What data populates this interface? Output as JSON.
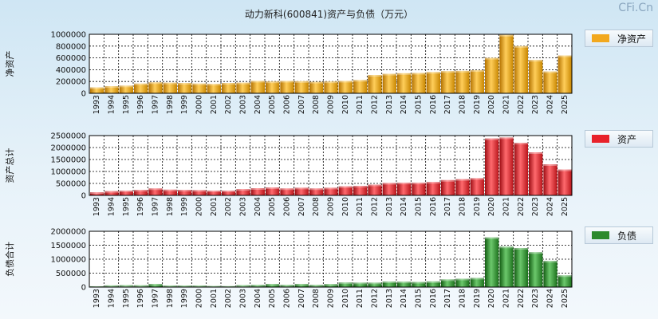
{
  "title": "动力新科(600841)资产与负债（万元）",
  "watermark": "CFi.Cn",
  "chart_data": [
    {
      "type": "bar",
      "ylabel": "净资产",
      "legend": "净资产",
      "color": "#f2a81e",
      "ylim": [
        0,
        1000000
      ],
      "yticks": [
        0,
        200000,
        400000,
        600000,
        800000,
        1000000
      ],
      "categories": [
        "1993",
        "1994",
        "1995",
        "1996",
        "1997",
        "1998",
        "1999",
        "2000",
        "2001",
        "2002",
        "2003",
        "2004",
        "2005",
        "2006",
        "2007",
        "2008",
        "2009",
        "2010",
        "2011",
        "2012",
        "2013",
        "2014",
        "2015",
        "2016",
        "2017",
        "2018",
        "2019",
        "2020",
        "2021",
        "2022",
        "2023",
        "2024",
        "2025"
      ],
      "values": [
        100000,
        120000,
        130000,
        165000,
        185000,
        180000,
        175000,
        165000,
        160000,
        175000,
        180000,
        210000,
        200000,
        210000,
        205000,
        195000,
        200000,
        210000,
        225000,
        310000,
        330000,
        340000,
        345000,
        360000,
        375000,
        380000,
        390000,
        600000,
        990000,
        800000,
        565000,
        370000,
        640000
      ]
    },
    {
      "type": "bar",
      "ylabel": "资产总计",
      "legend": "资产",
      "color": "#e8222a",
      "ylim": [
        0,
        2500000
      ],
      "yticks": [
        0,
        500000,
        1000000,
        1500000,
        2000000,
        2500000
      ],
      "categories": [
        "1993",
        "1994",
        "1995",
        "1996",
        "1997",
        "1998",
        "1999",
        "2000",
        "2001",
        "2002",
        "2003",
        "2004",
        "2005",
        "2006",
        "2007",
        "2008",
        "2009",
        "2010",
        "2011",
        "2012",
        "2013",
        "2014",
        "2015",
        "2016",
        "2017",
        "2018",
        "2019",
        "2020",
        "2021",
        "2022",
        "2023",
        "2024",
        "2025"
      ],
      "values": [
        130000,
        180000,
        200000,
        230000,
        290000,
        240000,
        230000,
        220000,
        200000,
        200000,
        260000,
        300000,
        330000,
        290000,
        320000,
        290000,
        320000,
        380000,
        400000,
        450000,
        520000,
        530000,
        530000,
        560000,
        640000,
        680000,
        720000,
        2380000,
        2420000,
        2200000,
        1800000,
        1300000,
        1080000
      ]
    },
    {
      "type": "bar",
      "ylabel": "负债合计",
      "legend": "负债",
      "color": "#2c8a2c",
      "ylim": [
        0,
        2000000
      ],
      "yticks": [
        0,
        500000,
        1000000,
        1500000,
        2000000
      ],
      "categories": [
        "1993",
        "1994",
        "1995",
        "1996",
        "1997",
        "1998",
        "1999",
        "2000",
        "2001",
        "2002",
        "2003",
        "2004",
        "2005",
        "2006",
        "2007",
        "2008",
        "2009",
        "2010",
        "2011",
        "2012",
        "2013",
        "2014",
        "2015",
        "2016",
        "2017",
        "2018",
        "2019",
        "2020",
        "2021",
        "2022",
        "2023",
        "2024",
        "2025"
      ],
      "values": [
        30000,
        60000,
        70000,
        65000,
        115000,
        55000,
        55000,
        55000,
        40000,
        35000,
        70000,
        80000,
        115000,
        80000,
        115000,
        80000,
        110000,
        165000,
        160000,
        160000,
        200000,
        195000,
        185000,
        205000,
        275000,
        300000,
        330000,
        1780000,
        1450000,
        1400000,
        1250000,
        940000,
        420000
      ]
    }
  ]
}
